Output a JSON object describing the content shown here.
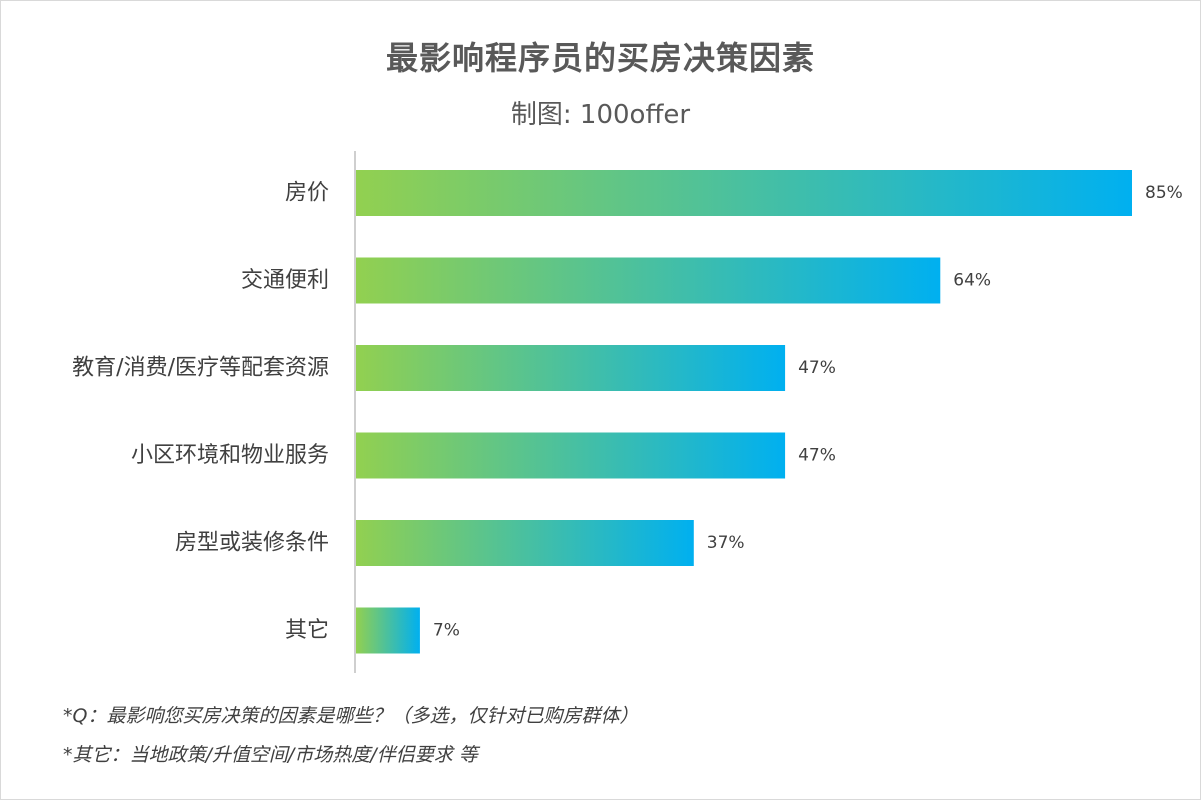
{
  "chart_data": {
    "type": "bar",
    "orientation": "horizontal",
    "title": "最影响程序员的买房决策因素",
    "subtitle": "制图: 100offer",
    "categories": [
      "房价",
      "交通便利",
      "教育/消费/医疗等配套资源",
      "小区环境和物业服务",
      "房型或装修条件",
      "其它"
    ],
    "values": [
      85,
      64,
      47,
      47,
      37,
      7
    ],
    "value_labels": [
      "85%",
      "64%",
      "47%",
      "47%",
      "37%",
      "7%"
    ],
    "xlim": [
      0,
      90
    ],
    "grid": false,
    "legend": "none",
    "bar_gradient": {
      "start": "#92d050",
      "end": "#00b0f0"
    }
  },
  "footnotes": {
    "note1": "*Q：最影响您买房决策的因素是哪些？（多选，仅针对已购房群体）",
    "note2": "*其它：当地政策/升值空间/市场热度/伴侣要求 等"
  },
  "colors": {
    "axis": "#bfbfbf",
    "text": "#404040",
    "title": "#595959"
  }
}
